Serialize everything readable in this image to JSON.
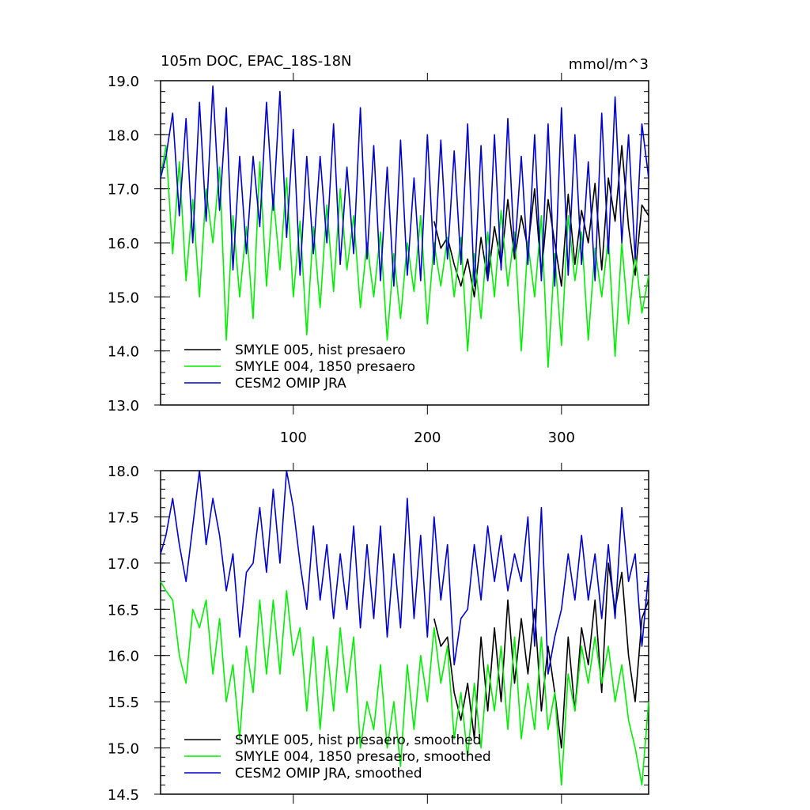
{
  "chart_data": [
    {
      "type": "line",
      "title": "105m DOC, EPAC_18S-18N",
      "units": "mmol/m^3",
      "xlim": [
        1,
        365
      ],
      "ylim": [
        13.0,
        19.0
      ],
      "xticks": [
        100,
        200,
        300
      ],
      "xtick_labels": [
        "100",
        "200",
        "300"
      ],
      "yticks": [
        13.0,
        14.0,
        15.0,
        16.0,
        17.0,
        18.0,
        19.0
      ],
      "ytick_labels": [
        "13.0",
        "14.0",
        "15.0",
        "16.0",
        "17.0",
        "18.0",
        "19.0"
      ],
      "legend_position": "bottom-left",
      "series": [
        {
          "name": "SMYLE 005, hist presaero",
          "color": "#000000",
          "x": [
            205,
            210,
            215,
            220,
            225,
            230,
            235,
            240,
            245,
            250,
            255,
            260,
            265,
            270,
            275,
            280,
            285,
            290,
            295,
            300,
            305,
            310,
            315,
            320,
            325,
            330,
            335,
            340,
            345,
            350,
            355,
            360,
            365
          ],
          "values": [
            16.4,
            15.9,
            16.1,
            15.6,
            15.2,
            15.7,
            15.0,
            16.1,
            15.3,
            16.3,
            15.6,
            16.8,
            15.7,
            16.5,
            15.9,
            17.0,
            15.4,
            16.8,
            16.0,
            15.2,
            16.9,
            15.6,
            16.6,
            16.0,
            17.1,
            15.5,
            17.2,
            16.4,
            17.8,
            16.3,
            15.4,
            16.7,
            16.5
          ]
        },
        {
          "name": "SMYLE 004, 1850 presaero",
          "color": "#00ee00",
          "x": [
            1,
            5,
            10,
            15,
            20,
            25,
            30,
            35,
            40,
            45,
            50,
            55,
            60,
            65,
            70,
            75,
            80,
            85,
            90,
            95,
            100,
            105,
            110,
            115,
            120,
            125,
            130,
            135,
            140,
            145,
            150,
            155,
            160,
            165,
            170,
            175,
            180,
            185,
            190,
            195,
            200,
            205,
            210,
            215,
            220,
            225,
            230,
            235,
            240,
            245,
            250,
            255,
            260,
            265,
            270,
            275,
            280,
            285,
            290,
            295,
            300,
            305,
            310,
            315,
            320,
            325,
            330,
            335,
            340,
            345,
            350,
            355,
            360,
            365
          ],
          "values": [
            17.2,
            17.8,
            15.8,
            17.5,
            15.3,
            16.8,
            15.0,
            17.0,
            16.0,
            17.4,
            14.2,
            16.5,
            15.0,
            16.3,
            14.6,
            17.5,
            15.2,
            16.9,
            15.5,
            17.2,
            15.0,
            16.4,
            14.3,
            16.3,
            14.8,
            16.7,
            15.1,
            17.0,
            15.5,
            16.5,
            14.8,
            16.0,
            15.0,
            16.2,
            14.2,
            15.8,
            14.6,
            16.0,
            15.1,
            16.5,
            14.5,
            16.0,
            15.2,
            16.1,
            15.0,
            16.1,
            14.0,
            15.8,
            14.6,
            16.2,
            15.0,
            16.6,
            15.2,
            16.2,
            14.0,
            16.0,
            15.0,
            16.5,
            13.7,
            15.8,
            14.1,
            16.5,
            15.3,
            16.2,
            14.2,
            15.9,
            15.0,
            16.1,
            13.9,
            16.0,
            14.5,
            15.8,
            14.7,
            15.4
          ]
        },
        {
          "name": "CESM2 OMIP JRA",
          "color": "#0000cc",
          "x": [
            1,
            5,
            10,
            15,
            20,
            25,
            30,
            35,
            40,
            45,
            50,
            55,
            60,
            65,
            70,
            75,
            80,
            85,
            90,
            95,
            100,
            105,
            110,
            115,
            120,
            125,
            130,
            135,
            140,
            145,
            150,
            155,
            160,
            165,
            170,
            175,
            180,
            185,
            190,
            195,
            200,
            205,
            210,
            215,
            220,
            225,
            230,
            235,
            240,
            245,
            250,
            255,
            260,
            265,
            270,
            275,
            280,
            285,
            290,
            295,
            300,
            305,
            310,
            315,
            320,
            325,
            330,
            335,
            340,
            345,
            350,
            355,
            360,
            365
          ],
          "values": [
            17.2,
            17.6,
            18.4,
            16.5,
            18.3,
            16.0,
            18.6,
            16.4,
            18.9,
            16.6,
            18.5,
            15.5,
            17.6,
            15.8,
            17.6,
            16.3,
            18.6,
            16.6,
            18.8,
            16.1,
            18.1,
            15.4,
            17.6,
            15.8,
            17.6,
            16.0,
            18.2,
            15.6,
            17.4,
            15.8,
            18.5,
            15.7,
            17.8,
            15.3,
            17.4,
            15.2,
            17.9,
            15.4,
            17.2,
            15.3,
            18.0,
            15.6,
            17.9,
            15.7,
            17.7,
            15.6,
            18.2,
            15.2,
            17.8,
            15.3,
            18.0,
            15.5,
            18.3,
            15.8,
            17.6,
            15.6,
            18.0,
            15.3,
            18.2,
            15.2,
            18.5,
            15.4,
            18.0,
            15.6,
            17.5,
            15.3,
            18.4,
            15.8,
            18.7,
            16.0,
            18.0,
            15.7,
            18.2,
            17.2
          ]
        }
      ]
    },
    {
      "type": "line",
      "title": "",
      "xlim": [
        1,
        365
      ],
      "ylim": [
        14.5,
        18.0
      ],
      "yticks": [
        14.5,
        15.0,
        15.5,
        16.0,
        16.5,
        17.0,
        17.5,
        18.0
      ],
      "ytick_labels": [
        "14.5",
        "15.0",
        "15.5",
        "16.0",
        "16.5",
        "17.0",
        "17.5",
        "18.0"
      ],
      "legend_position": "bottom-left",
      "series": [
        {
          "name": "SMYLE 005, hist presaero, smoothed",
          "color": "#000000",
          "x": [
            205,
            210,
            215,
            220,
            225,
            230,
            235,
            240,
            245,
            250,
            255,
            260,
            265,
            270,
            275,
            280,
            285,
            290,
            295,
            300,
            305,
            310,
            315,
            320,
            325,
            330,
            335,
            340,
            345,
            350,
            355,
            360,
            365
          ],
          "values": [
            16.4,
            16.1,
            16.2,
            15.6,
            15.3,
            15.7,
            15.1,
            16.2,
            15.4,
            16.3,
            15.5,
            16.6,
            15.7,
            16.4,
            15.8,
            16.5,
            15.4,
            16.1,
            15.6,
            15.0,
            16.2,
            15.4,
            16.3,
            15.9,
            16.6,
            15.6,
            17.0,
            16.5,
            16.9,
            16.0,
            15.5,
            16.4,
            16.6
          ]
        },
        {
          "name": "SMYLE 004, 1850 presaero, smoothed",
          "color": "#00ee00",
          "x": [
            1,
            5,
            10,
            15,
            20,
            25,
            30,
            35,
            40,
            45,
            50,
            55,
            60,
            65,
            70,
            75,
            80,
            85,
            90,
            95,
            100,
            105,
            110,
            115,
            120,
            125,
            130,
            135,
            140,
            145,
            150,
            155,
            160,
            165,
            170,
            175,
            180,
            185,
            190,
            195,
            200,
            205,
            210,
            215,
            220,
            225,
            230,
            235,
            240,
            245,
            250,
            255,
            260,
            265,
            270,
            275,
            280,
            285,
            290,
            295,
            300,
            305,
            310,
            315,
            320,
            325,
            330,
            335,
            340,
            345,
            350,
            355,
            360,
            365
          ],
          "values": [
            16.8,
            16.7,
            16.6,
            16.0,
            15.7,
            16.5,
            16.3,
            16.6,
            15.8,
            16.4,
            15.5,
            15.9,
            15.1,
            16.1,
            15.6,
            16.6,
            15.8,
            16.6,
            15.8,
            16.7,
            16.0,
            16.3,
            15.4,
            16.2,
            15.2,
            16.1,
            15.4,
            16.3,
            15.6,
            16.2,
            15.0,
            15.5,
            15.2,
            15.9,
            15.0,
            15.5,
            14.8,
            15.9,
            15.2,
            16.0,
            15.5,
            16.3,
            15.7,
            16.1,
            15.1,
            15.6,
            14.9,
            15.7,
            15.0,
            15.9,
            15.4,
            16.1,
            15.2,
            16.2,
            15.1,
            15.7,
            15.2,
            16.2,
            15.2,
            15.6,
            14.6,
            15.8,
            15.4,
            16.1,
            15.7,
            16.2,
            15.7,
            16.1,
            15.5,
            15.9,
            15.3,
            15.0,
            14.6,
            15.5
          ]
        },
        {
          "name": "CESM2 OMIP JRA, smoothed",
          "color": "#0000cc",
          "x": [
            1,
            5,
            10,
            15,
            20,
            25,
            30,
            35,
            40,
            45,
            50,
            55,
            60,
            65,
            70,
            75,
            80,
            85,
            90,
            95,
            100,
            105,
            110,
            115,
            120,
            125,
            130,
            135,
            140,
            145,
            150,
            155,
            160,
            165,
            170,
            175,
            180,
            185,
            190,
            195,
            200,
            205,
            210,
            215,
            220,
            225,
            230,
            235,
            240,
            245,
            250,
            255,
            260,
            265,
            270,
            275,
            280,
            285,
            290,
            295,
            300,
            305,
            310,
            315,
            320,
            325,
            330,
            335,
            340,
            345,
            350,
            355,
            360,
            365
          ],
          "values": [
            17.1,
            17.3,
            17.7,
            17.2,
            16.8,
            17.4,
            18.0,
            17.2,
            17.7,
            17.3,
            16.7,
            17.1,
            16.2,
            16.9,
            17.0,
            17.6,
            16.9,
            17.8,
            17.0,
            18.0,
            17.6,
            17.0,
            16.5,
            17.4,
            16.6,
            17.2,
            16.4,
            17.1,
            16.5,
            17.4,
            16.3,
            17.2,
            16.4,
            17.4,
            16.2,
            17.1,
            16.3,
            17.7,
            16.4,
            17.3,
            16.2,
            17.5,
            16.6,
            17.2,
            15.9,
            16.4,
            16.5,
            17.2,
            16.6,
            17.4,
            16.8,
            17.3,
            16.7,
            17.1,
            16.8,
            17.5,
            16.1,
            17.6,
            15.8,
            16.2,
            16.5,
            17.1,
            16.6,
            17.3,
            16.6,
            17.1,
            16.4,
            17.2,
            16.4,
            17.6,
            16.8,
            17.1,
            16.1,
            16.9
          ]
        }
      ]
    }
  ]
}
